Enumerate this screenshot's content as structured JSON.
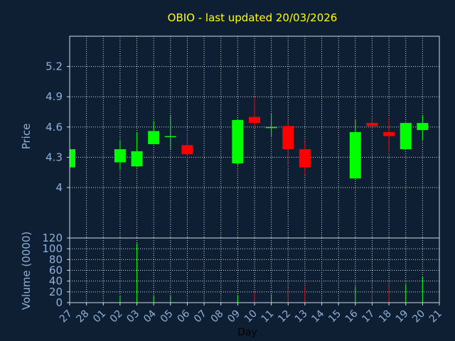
{
  "chart_data": [
    {
      "type": "candlestick",
      "title": "OBIO - last updated 20/03/2026",
      "ylabel": "Price",
      "ylim": [
        3.5,
        5.5
      ],
      "yticks": [
        4,
        4.3,
        4.6,
        4.9,
        5.2
      ],
      "ytick_labels": [
        "4",
        "4.3",
        "4.6",
        "4.9",
        "5.2"
      ],
      "grid": true,
      "days": [
        "27",
        "28",
        "01",
        "02",
        "03",
        "04",
        "05",
        "06",
        "07",
        "08",
        "09",
        "10",
        "11",
        "12",
        "13",
        "14",
        "15",
        "16",
        "17",
        "18",
        "19",
        "20",
        "21"
      ],
      "candles": [
        {
          "day": "27",
          "open": 4.2,
          "close": 4.38,
          "high": 4.39,
          "low": 4.2
        },
        {
          "day": "02",
          "open": 4.25,
          "close": 4.38,
          "high": 4.47,
          "low": 4.18
        },
        {
          "day": "03",
          "open": 4.21,
          "close": 4.36,
          "high": 4.55,
          "low": 4.2
        },
        {
          "day": "04",
          "open": 4.43,
          "close": 4.56,
          "high": 4.66,
          "low": 4.43
        },
        {
          "day": "05",
          "open": 4.5,
          "close": 4.51,
          "high": 4.72,
          "low": 4.38
        },
        {
          "day": "06",
          "open": 4.42,
          "close": 4.33,
          "high": 4.55,
          "low": 4.25
        },
        {
          "day": "09",
          "open": 4.24,
          "close": 4.67,
          "high": 4.68,
          "low": 4.22
        },
        {
          "day": "10",
          "open": 4.7,
          "close": 4.64,
          "high": 4.9,
          "low": 4.6
        },
        {
          "day": "11",
          "open": 4.59,
          "close": 4.6,
          "high": 4.73,
          "low": 4.5
        },
        {
          "day": "12",
          "open": 4.61,
          "close": 4.38,
          "high": 4.67,
          "low": 4.22
        },
        {
          "day": "13",
          "open": 4.38,
          "close": 4.2,
          "high": 4.46,
          "low": 4.13
        },
        {
          "day": "16",
          "open": 4.09,
          "close": 4.55,
          "high": 4.67,
          "low": 4.09
        },
        {
          "day": "17",
          "open": 4.64,
          "close": 4.61,
          "high": 4.72,
          "low": 4.58
        },
        {
          "day": "18",
          "open": 4.55,
          "close": 4.51,
          "high": 4.7,
          "low": 4.35
        },
        {
          "day": "19",
          "open": 4.38,
          "close": 4.64,
          "high": 4.64,
          "low": 4.38
        },
        {
          "day": "20",
          "open": 4.57,
          "close": 4.64,
          "high": 4.72,
          "low": 4.47
        }
      ],
      "colors": {
        "up": "#00ff00",
        "down": "#ff0000",
        "background": "#0f1f33",
        "text": "#8fb0d8",
        "title": "#ffff00"
      }
    },
    {
      "type": "bar",
      "ylabel": "Volume (0000)",
      "xlabel": "Day",
      "ylim": [
        0,
        120
      ],
      "yticks": [
        0,
        20,
        40,
        60,
        80,
        100,
        120
      ],
      "ytick_labels": [
        "0",
        "20",
        "40",
        "60",
        "80",
        "100",
        "120"
      ],
      "grid": true,
      "volumes": [
        {
          "day": "27",
          "value": 0,
          "direction": "up"
        },
        {
          "day": "02",
          "value": 12,
          "direction": "up"
        },
        {
          "day": "03",
          "value": 110,
          "direction": "up"
        },
        {
          "day": "04",
          "value": 14,
          "direction": "up"
        },
        {
          "day": "05",
          "value": 14,
          "direction": "up"
        },
        {
          "day": "06",
          "value": 10,
          "direction": "down"
        },
        {
          "day": "09",
          "value": 14,
          "direction": "up"
        },
        {
          "day": "10",
          "value": 20,
          "direction": "down"
        },
        {
          "day": "11",
          "value": 15,
          "direction": "up"
        },
        {
          "day": "12",
          "value": 27,
          "direction": "down"
        },
        {
          "day": "13",
          "value": 30,
          "direction": "down"
        },
        {
          "day": "16",
          "value": 30,
          "direction": "up"
        },
        {
          "day": "17",
          "value": 28,
          "direction": "down"
        },
        {
          "day": "18",
          "value": 32,
          "direction": "down"
        },
        {
          "day": "19",
          "value": 34,
          "direction": "up"
        },
        {
          "day": "20",
          "value": 48,
          "direction": "up"
        }
      ]
    }
  ]
}
